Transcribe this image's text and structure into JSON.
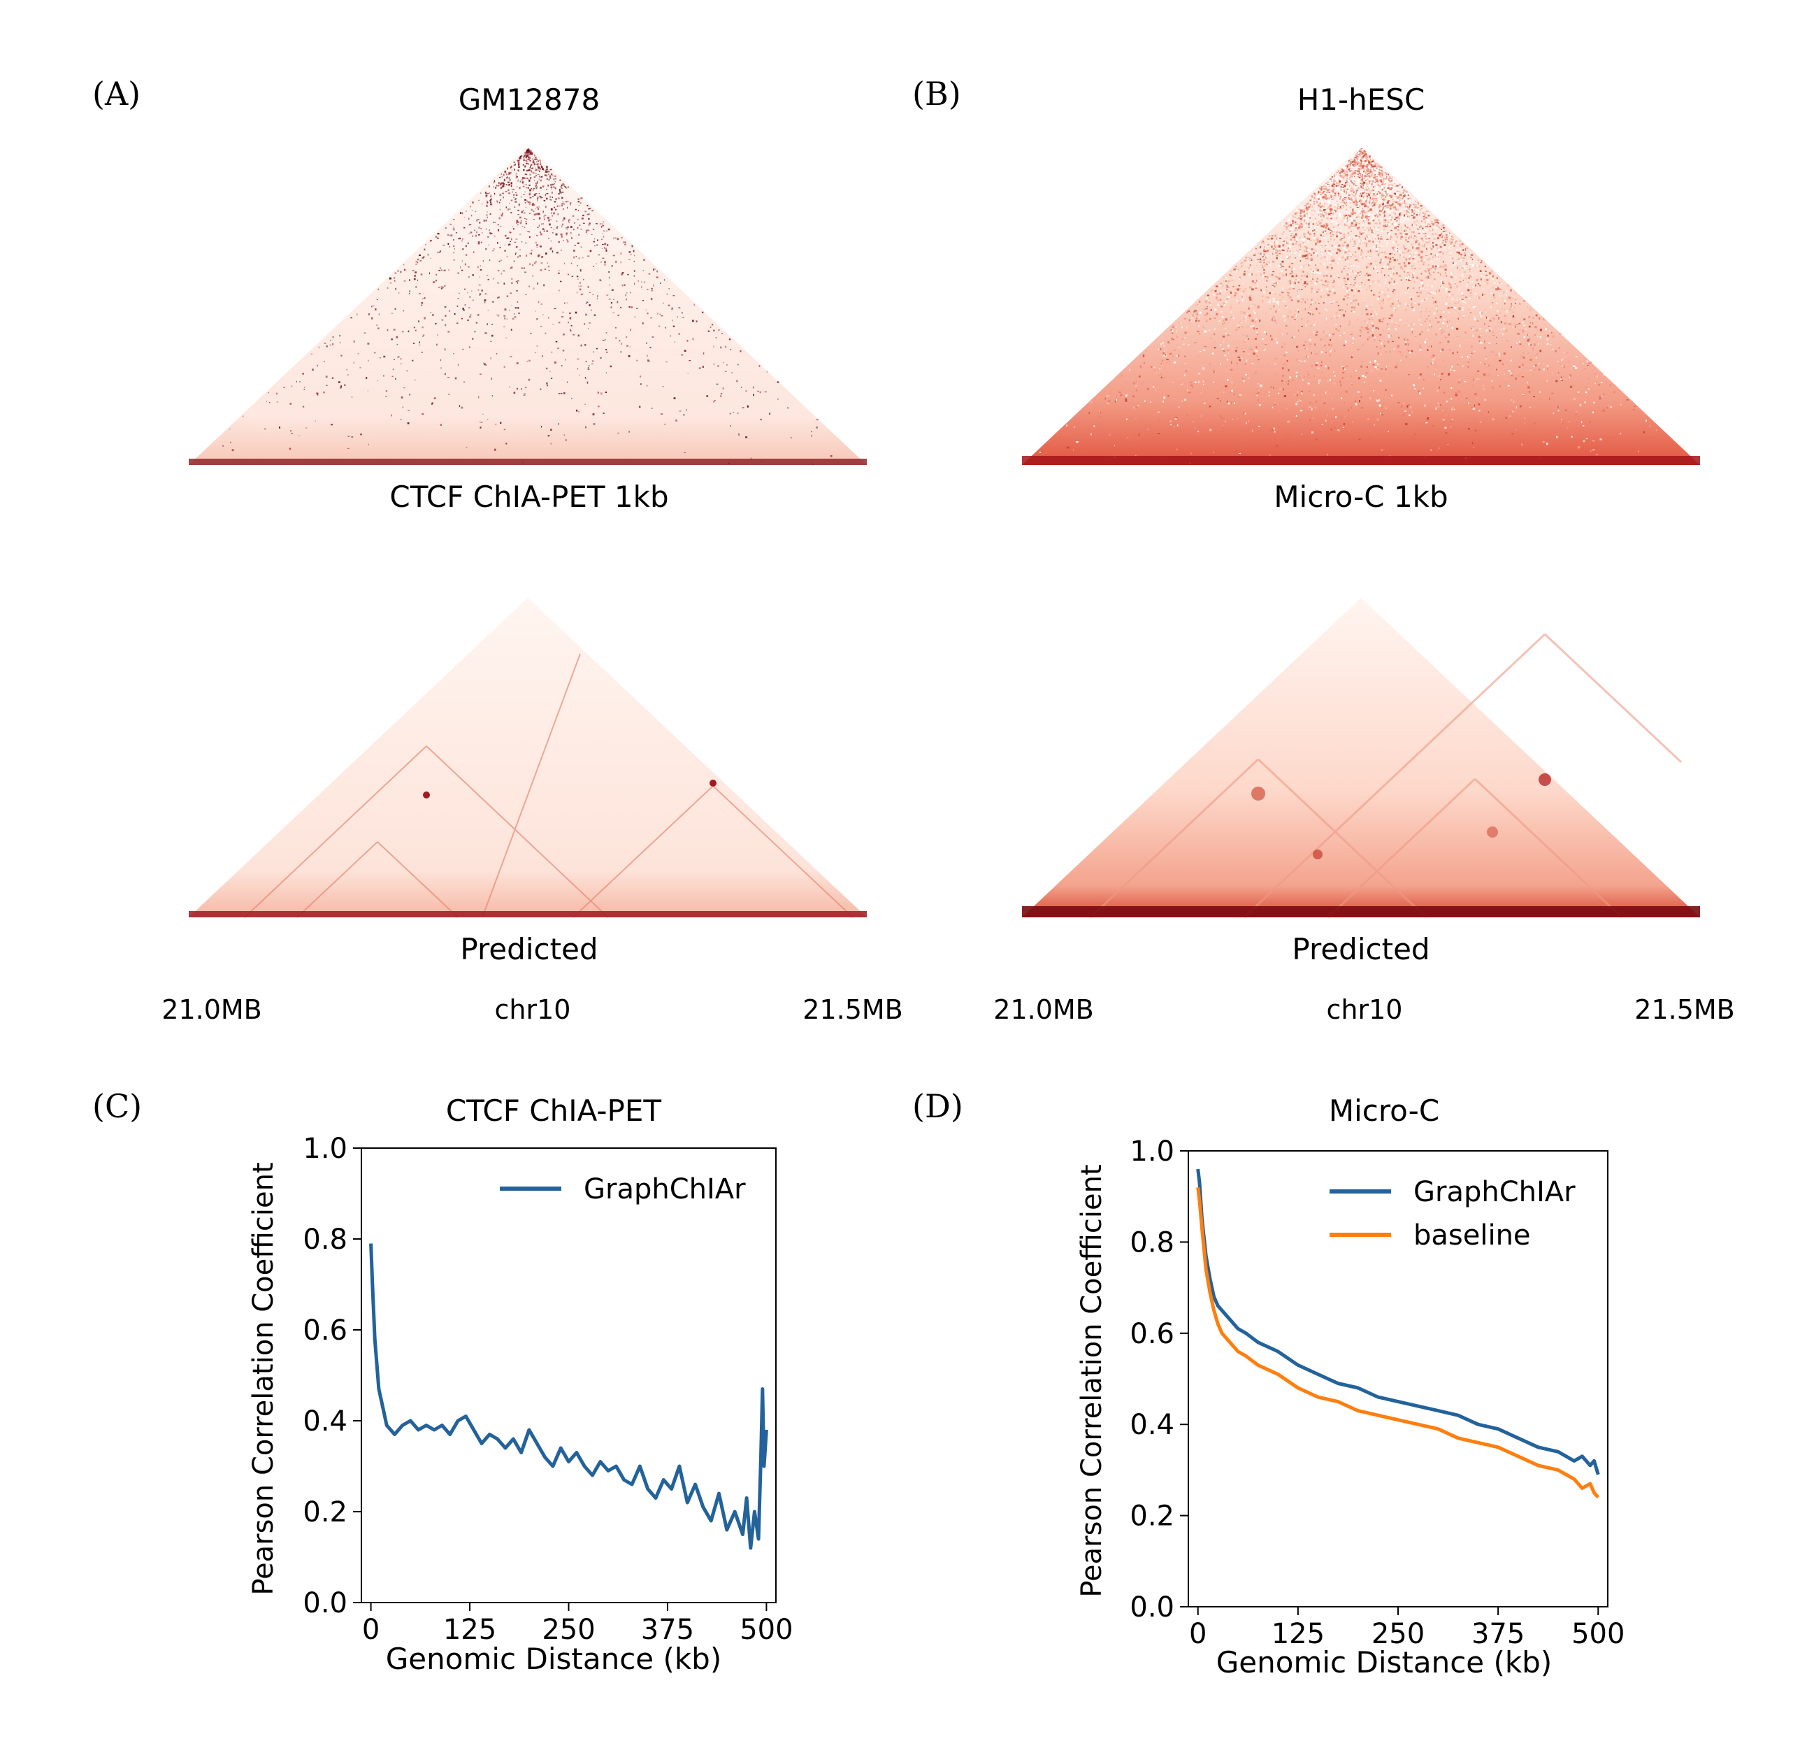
{
  "colors": {
    "graphchiar": "#23629a",
    "baseline": "#ff7f0e",
    "heat_low": "#fff5f0",
    "heat_high": "#67000d"
  },
  "panels": {
    "A": {
      "letter": "(A)",
      "title": "GM12878",
      "top_caption": "CTCF ChIA-PET 1kb",
      "bottom_caption": "Predicted",
      "axis_left": "21.0MB",
      "axis_mid": "chr10",
      "axis_right": "21.5MB"
    },
    "B": {
      "letter": "(B)",
      "title": "H1-hESC",
      "top_caption": "Micro-C 1kb",
      "bottom_caption": "Predicted",
      "axis_left": "21.0MB",
      "axis_mid": "chr10",
      "axis_right": "21.5MB"
    },
    "C": {
      "letter": "(C)"
    },
    "D": {
      "letter": "(D)"
    }
  },
  "chart_data": [
    {
      "type": "line",
      "title": "CTCF ChIA-PET",
      "xlabel": "Genomic Distance (kb)",
      "ylabel": "Pearson Correlation Coefficient",
      "xlim": [
        -12,
        512
      ],
      "ylim": [
        0.0,
        1.0
      ],
      "xticks": [
        0,
        125,
        250,
        375,
        500
      ],
      "yticks": [
        0.0,
        0.2,
        0.4,
        0.6,
        0.8,
        1.0
      ],
      "grid": false,
      "legend": "top-right",
      "series": [
        {
          "name": "GraphChIAr",
          "x": [
            0,
            2,
            5,
            10,
            15,
            20,
            25,
            30,
            40,
            50,
            60,
            70,
            80,
            90,
            100,
            110,
            120,
            130,
            140,
            150,
            160,
            170,
            180,
            190,
            200,
            210,
            220,
            230,
            240,
            250,
            260,
            270,
            280,
            290,
            300,
            310,
            320,
            330,
            340,
            350,
            360,
            370,
            380,
            390,
            400,
            410,
            420,
            430,
            440,
            450,
            460,
            470,
            475,
            480,
            485,
            490,
            493,
            495,
            497,
            500
          ],
          "y": [
            0.79,
            0.7,
            0.58,
            0.47,
            0.43,
            0.39,
            0.38,
            0.37,
            0.39,
            0.4,
            0.38,
            0.39,
            0.38,
            0.39,
            0.37,
            0.4,
            0.41,
            0.38,
            0.35,
            0.37,
            0.36,
            0.34,
            0.36,
            0.33,
            0.38,
            0.35,
            0.32,
            0.3,
            0.34,
            0.31,
            0.33,
            0.3,
            0.28,
            0.31,
            0.29,
            0.3,
            0.27,
            0.26,
            0.3,
            0.25,
            0.23,
            0.27,
            0.25,
            0.3,
            0.22,
            0.26,
            0.21,
            0.18,
            0.24,
            0.16,
            0.2,
            0.15,
            0.23,
            0.12,
            0.2,
            0.14,
            0.32,
            0.47,
            0.3,
            0.38
          ]
        }
      ]
    },
    {
      "type": "line",
      "title": "Micro-C",
      "xlabel": "Genomic Distance (kb)",
      "ylabel": "Pearson Correlation Coefficient",
      "xlim": [
        -12,
        512
      ],
      "ylim": [
        0.0,
        1.0
      ],
      "xticks": [
        0,
        125,
        250,
        375,
        500
      ],
      "yticks": [
        0.0,
        0.2,
        0.4,
        0.6,
        0.8,
        1.0
      ],
      "grid": false,
      "legend": "top-right",
      "series": [
        {
          "name": "GraphChIAr",
          "x": [
            0,
            2,
            5,
            10,
            15,
            20,
            25,
            30,
            40,
            50,
            60,
            75,
            100,
            125,
            150,
            175,
            200,
            225,
            250,
            275,
            300,
            325,
            350,
            375,
            400,
            425,
            450,
            470,
            480,
            490,
            495,
            500
          ],
          "y": [
            0.96,
            0.93,
            0.85,
            0.77,
            0.72,
            0.68,
            0.66,
            0.65,
            0.63,
            0.61,
            0.6,
            0.58,
            0.56,
            0.53,
            0.51,
            0.49,
            0.48,
            0.46,
            0.45,
            0.44,
            0.43,
            0.42,
            0.4,
            0.39,
            0.37,
            0.35,
            0.34,
            0.32,
            0.33,
            0.31,
            0.32,
            0.29
          ]
        },
        {
          "name": "baseline",
          "x": [
            0,
            2,
            5,
            10,
            15,
            20,
            25,
            30,
            40,
            50,
            60,
            75,
            100,
            125,
            150,
            175,
            200,
            225,
            250,
            275,
            300,
            325,
            350,
            375,
            400,
            425,
            450,
            470,
            480,
            490,
            495,
            500
          ],
          "y": [
            0.92,
            0.89,
            0.83,
            0.74,
            0.69,
            0.65,
            0.62,
            0.6,
            0.58,
            0.56,
            0.55,
            0.53,
            0.51,
            0.48,
            0.46,
            0.45,
            0.43,
            0.42,
            0.41,
            0.4,
            0.39,
            0.37,
            0.36,
            0.35,
            0.33,
            0.31,
            0.3,
            0.28,
            0.26,
            0.27,
            0.25,
            0.24
          ]
        }
      ]
    }
  ]
}
